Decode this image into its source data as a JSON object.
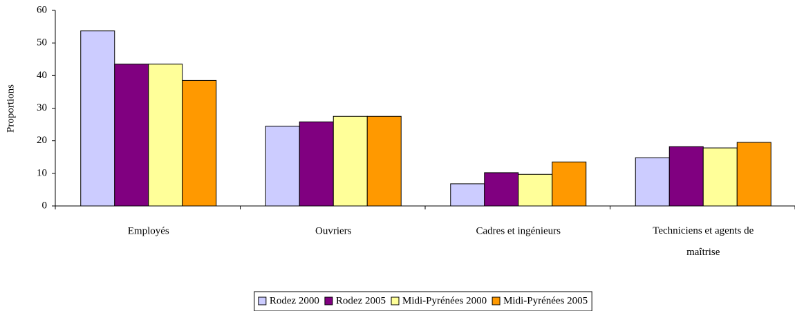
{
  "chart_data": {
    "type": "bar",
    "y_label": "Proportions",
    "categories": [
      "Employés",
      "Ouvriers",
      "Cadres et ingénieurs",
      "Techniciens et agents de maîtrise"
    ],
    "series": [
      {
        "name": "Rodez 2000",
        "color": "#ccccff",
        "values": [
          53.7,
          24.5,
          6.8,
          14.8
        ]
      },
      {
        "name": "Rodez 2005",
        "color": "#800080",
        "values": [
          43.5,
          25.8,
          10.2,
          18.2
        ]
      },
      {
        "name": "Midi-Pyrénées 2000",
        "color": "#ffff99",
        "values": [
          43.5,
          27.5,
          9.7,
          17.8
        ]
      },
      {
        "name": "Midi-Pyrénées 2005",
        "color": "#ff9900",
        "values": [
          38.5,
          27.5,
          13.5,
          19.5
        ]
      }
    ],
    "ylim": [
      0,
      60
    ],
    "yticks": [
      0,
      10,
      20,
      30,
      40,
      50,
      60
    ],
    "grid": false,
    "legend": "bottom"
  }
}
